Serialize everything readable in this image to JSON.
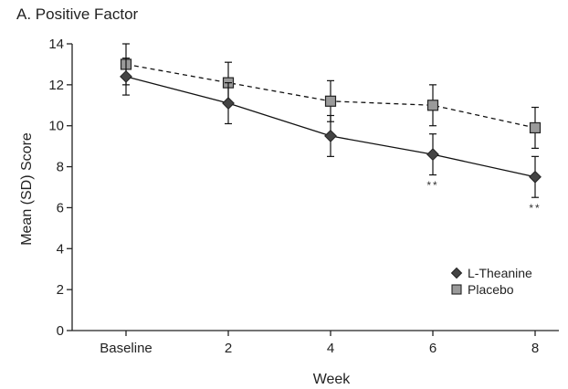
{
  "chart_data": {
    "type": "line",
    "title": "A. Positive Factor",
    "xlabel": "Week",
    "ylabel": "Mean (SD) Score",
    "categories": [
      "Baseline",
      "2",
      "4",
      "6",
      "8"
    ],
    "x": [
      0,
      2,
      4,
      6,
      8
    ],
    "ylim": [
      0,
      14
    ],
    "yticks": [
      0,
      2,
      4,
      6,
      8,
      10,
      12,
      14
    ],
    "grid": false,
    "legend_position": "bottom-right",
    "series": [
      {
        "name": "L-Theanine",
        "marker": "diamond",
        "line_style": "solid",
        "color": "#444444",
        "values": [
          12.4,
          11.1,
          9.5,
          8.6,
          7.5
        ],
        "sd": [
          0.9,
          1.0,
          1.0,
          1.0,
          1.0
        ]
      },
      {
        "name": "Placebo",
        "marker": "square",
        "line_style": "dashed",
        "color": "#9a9a9a",
        "values": [
          13.0,
          12.1,
          11.2,
          11.0,
          9.9
        ],
        "sd": [
          1.0,
          1.0,
          1.0,
          1.0,
          1.0
        ]
      }
    ],
    "annotations": [
      {
        "x": 6,
        "y": 6.9,
        "text": "**"
      },
      {
        "x": 8,
        "y": 5.8,
        "text": "**"
      }
    ]
  }
}
